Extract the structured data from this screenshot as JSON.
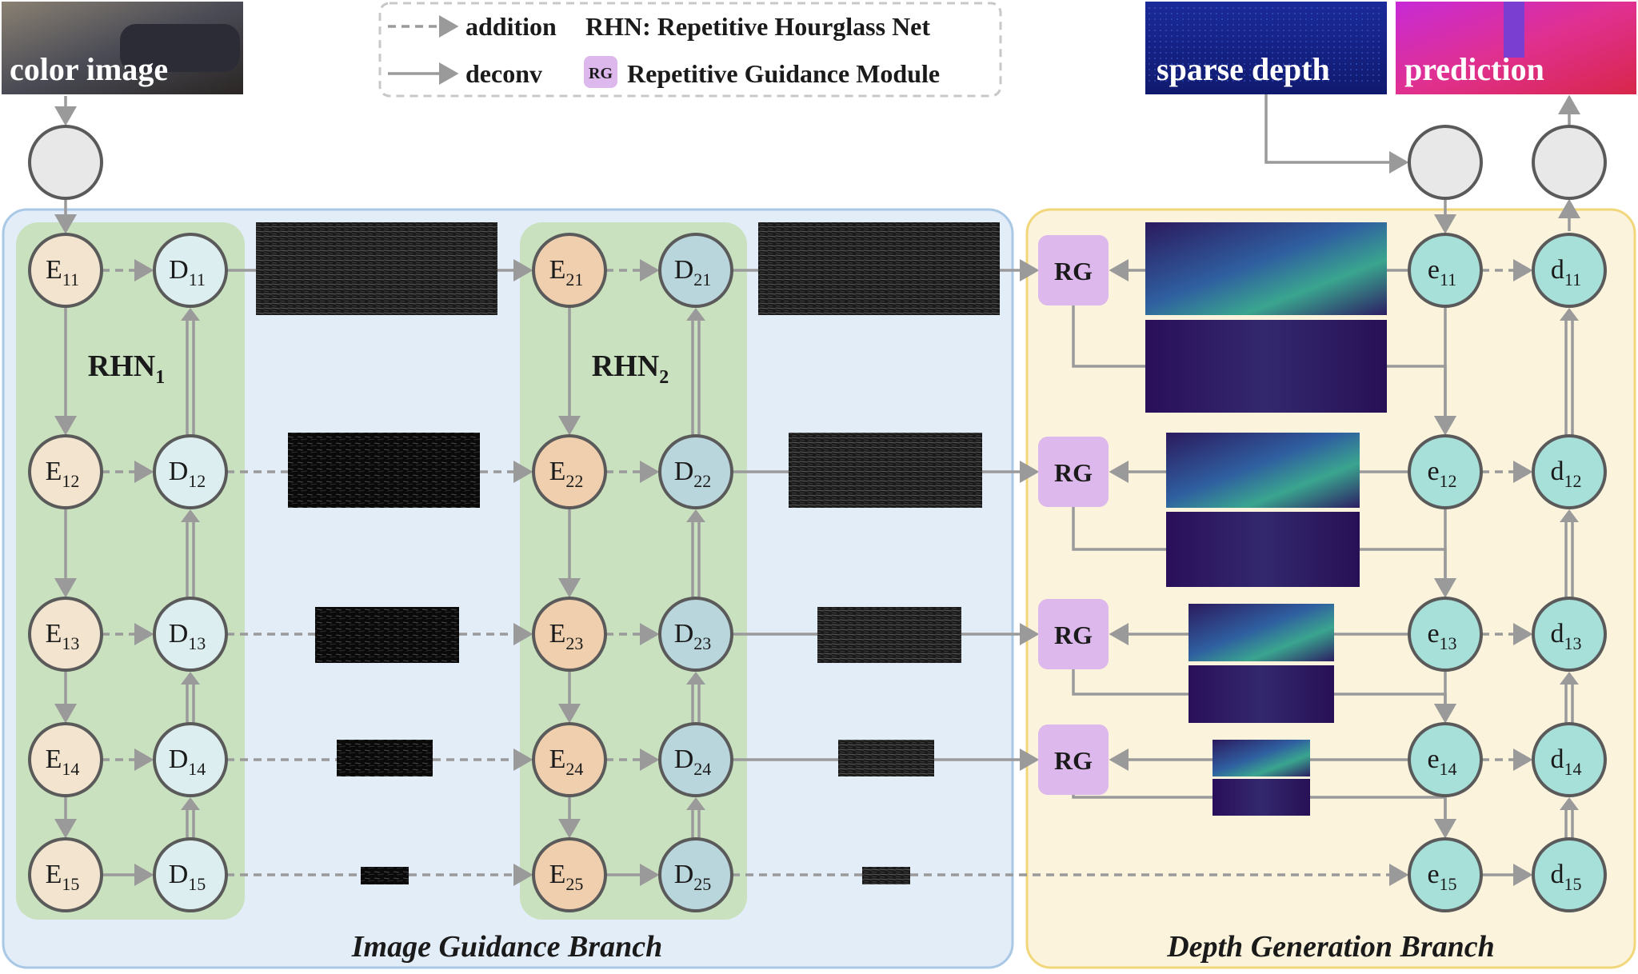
{
  "legend": {
    "addition_label": "addition",
    "deconv_label": "deconv",
    "rhn_label": "RHN: Repetitive Hourglass Net",
    "rg_badge": "RG",
    "rg_label": "Repetitive Guidance Module"
  },
  "inputs": {
    "color_image": "color image",
    "sparse_depth": "sparse depth",
    "prediction": "prediction"
  },
  "branches": {
    "image_guidance": "Image Guidance Branch",
    "depth_generation": "Depth Generation Branch"
  },
  "rhn": [
    {
      "main": "RHN",
      "sub": "1"
    },
    {
      "main": "RHN",
      "sub": "2"
    }
  ],
  "rg_module_label": "RG",
  "nodes": {
    "E1": [
      {
        "main": "E",
        "sub": "11"
      },
      {
        "main": "E",
        "sub": "12"
      },
      {
        "main": "E",
        "sub": "13"
      },
      {
        "main": "E",
        "sub": "14"
      },
      {
        "main": "E",
        "sub": "15"
      }
    ],
    "D1": [
      {
        "main": "D",
        "sub": "11"
      },
      {
        "main": "D",
        "sub": "12"
      },
      {
        "main": "D",
        "sub": "13"
      },
      {
        "main": "D",
        "sub": "14"
      },
      {
        "main": "D",
        "sub": "15"
      }
    ],
    "E2": [
      {
        "main": "E",
        "sub": "21"
      },
      {
        "main": "E",
        "sub": "22"
      },
      {
        "main": "E",
        "sub": "23"
      },
      {
        "main": "E",
        "sub": "24"
      },
      {
        "main": "E",
        "sub": "25"
      }
    ],
    "D2": [
      {
        "main": "D",
        "sub": "21"
      },
      {
        "main": "D",
        "sub": "22"
      },
      {
        "main": "D",
        "sub": "23"
      },
      {
        "main": "D",
        "sub": "24"
      },
      {
        "main": "D",
        "sub": "25"
      }
    ],
    "e1": [
      {
        "main": "e",
        "sub": "11"
      },
      {
        "main": "e",
        "sub": "12"
      },
      {
        "main": "e",
        "sub": "13"
      },
      {
        "main": "e",
        "sub": "14"
      },
      {
        "main": "e",
        "sub": "15"
      }
    ],
    "d1": [
      {
        "main": "d",
        "sub": "11"
      },
      {
        "main": "d",
        "sub": "12"
      },
      {
        "main": "d",
        "sub": "13"
      },
      {
        "main": "d",
        "sub": "14"
      },
      {
        "main": "d",
        "sub": "15"
      }
    ]
  },
  "colors": {
    "image_branch_bg": "#e3edf8",
    "image_branch_border": "#a9c8e6",
    "depth_branch_bg": "#fcf3dc",
    "depth_branch_border": "#f2d67a",
    "rhn_bg": "#c9e1bf",
    "encoder_fill": "#f3e4cf",
    "encoder2_fill": "#efcfae",
    "decoder_fill": "#dceef0",
    "decoder2_fill": "#bad6dd",
    "depth_node_fill": "#a7dfd9",
    "rg_fill": "#dcb8ec",
    "arrow": "#9a9a9a",
    "node_stroke": "#5a5a5a",
    "io_fill": "#e8e8e8"
  }
}
